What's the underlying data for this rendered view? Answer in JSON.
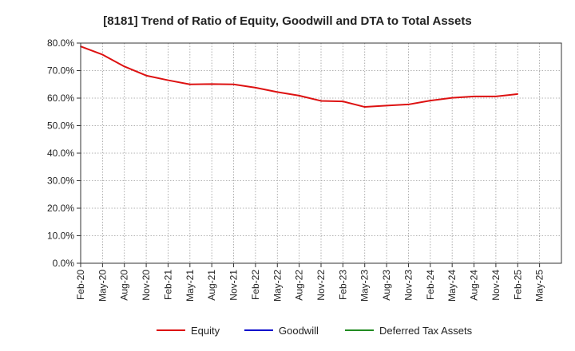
{
  "chart_data": {
    "type": "line",
    "title": "[8181]  Trend of Ratio of Equity, Goodwill and DTA to Total Assets",
    "xlabel": "",
    "ylabel": "",
    "ylim": [
      0,
      80
    ],
    "yticks": [
      0,
      10,
      20,
      30,
      40,
      50,
      60,
      70,
      80
    ],
    "ytick_labels": [
      "0.0%",
      "10.0%",
      "20.0%",
      "30.0%",
      "40.0%",
      "50.0%",
      "60.0%",
      "70.0%",
      "80.0%"
    ],
    "xtick_labels": [
      "Feb-20",
      "May-20",
      "Aug-20",
      "Nov-20",
      "Feb-21",
      "May-21",
      "Aug-21",
      "Nov-21",
      "Feb-22",
      "May-22",
      "Aug-22",
      "Nov-22",
      "Feb-23",
      "May-23",
      "Aug-23",
      "Nov-23",
      "Feb-24",
      "May-24",
      "Aug-24",
      "Nov-24",
      "Feb-25",
      "May-25"
    ],
    "grid": true,
    "legend_position": "bottom",
    "series": [
      {
        "name": "Equity",
        "color": "#dd1111",
        "values": [
          78.8,
          75.8,
          71.5,
          68.2,
          66.5,
          65.0,
          65.1,
          65.0,
          63.8,
          62.2,
          60.9,
          59.0,
          58.8,
          56.8,
          57.3,
          57.7,
          59.1,
          60.1,
          60.6,
          60.6,
          61.5
        ]
      },
      {
        "name": "Goodwill",
        "color": "#0000cc",
        "values": []
      },
      {
        "name": "Deferred Tax Assets",
        "color": "#228b22",
        "values": []
      }
    ]
  }
}
